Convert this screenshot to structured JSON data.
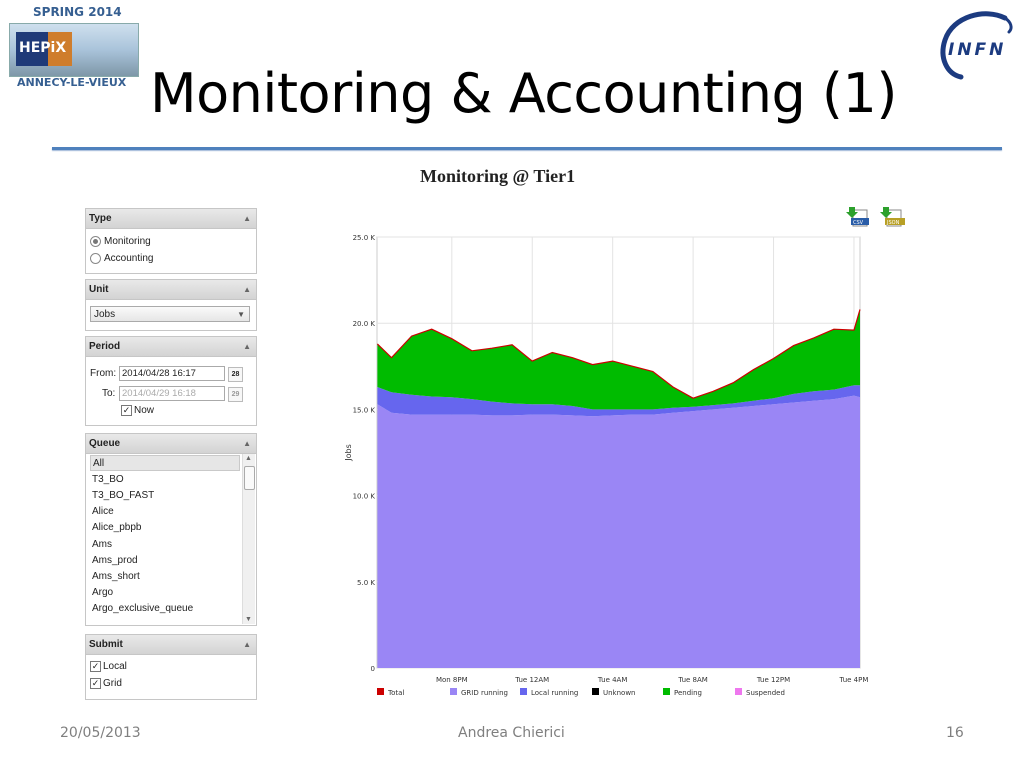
{
  "slide": {
    "title": "Monitoring & Accounting (1)",
    "logo_left_top": "SPRING 2014",
    "logo_left_mid": "HEPiX",
    "logo_left_bottom": "ANNECY-LE-VIEUX",
    "logo_right": "INFN",
    "footer_date": "20/05/2013",
    "footer_author": "Andrea Chierici",
    "footer_page": "16",
    "rule_color": "#4f81bd"
  },
  "page": {
    "heading": "Monitoring @ Tier1",
    "export": {
      "csv_label": "CSV",
      "json_label": "JSON"
    }
  },
  "form": {
    "type": {
      "title": "Type",
      "options": [
        "Monitoring",
        "Accounting"
      ],
      "selected": "Monitoring"
    },
    "unit": {
      "title": "Unit",
      "value": "Jobs"
    },
    "period": {
      "title": "Period",
      "from_label": "From:",
      "from_value": "2014/04/28 16:17",
      "from_day": "28",
      "to_label": "To:",
      "to_value": "2014/04/29 16:18",
      "to_day": "29",
      "now_label": "Now",
      "now_checked": true
    },
    "queue": {
      "title": "Queue",
      "items": [
        "All",
        "T3_BO",
        "T3_BO_FAST",
        "Alice",
        "Alice_pbpb",
        "Ams",
        "Ams_prod",
        "Ams_short",
        "Argo",
        "Argo_exclusive_queue"
      ],
      "selected": "All"
    },
    "submit": {
      "title": "Submit",
      "options": [
        "Local",
        "Grid"
      ],
      "checked": [
        "Local",
        "Grid"
      ]
    }
  },
  "chart_data": {
    "type": "area",
    "title": "",
    "xlabel": "",
    "ylabel": "Jobs",
    "ylim": [
      0,
      25000
    ],
    "y_ticks": [
      "0",
      "5.0 K",
      "10.0 K",
      "15.0 K",
      "20.0 K",
      "25.0 K"
    ],
    "x_ticks": [
      "Mon  8PM",
      "Tue 12AM",
      "Tue  4AM",
      "Tue  8AM",
      "Tue 12PM",
      "Tue  4PM"
    ],
    "x_hours": [
      20,
      24,
      28,
      32,
      36,
      40
    ],
    "x_range_hours": [
      16.28,
      40.3
    ],
    "grid": true,
    "legend_position": "bottom",
    "legend": [
      {
        "name": "Total",
        "color": "#cc0000"
      },
      {
        "name": "GRID running",
        "color": "#9a86f5"
      },
      {
        "name": "Local running",
        "color": "#6666ee"
      },
      {
        "name": "Unknown",
        "color": "#000000"
      },
      {
        "name": "Pending",
        "color": "#00bb00"
      },
      {
        "name": "Suspended",
        "color": "#ee77ee"
      }
    ],
    "x": [
      16.3,
      17,
      18,
      19,
      20,
      21,
      22,
      23,
      24,
      25,
      26,
      27,
      28,
      29,
      30,
      31,
      32,
      33,
      34,
      35,
      36,
      37,
      38,
      39,
      40,
      40.3
    ],
    "series": [
      {
        "name": "GRID running",
        "values": [
          15300,
          14800,
          14700,
          14700,
          14700,
          14700,
          14650,
          14650,
          14700,
          14700,
          14650,
          14600,
          14650,
          14700,
          14700,
          14800,
          14900,
          15000,
          15100,
          15200,
          15300,
          15400,
          15500,
          15600,
          15800,
          15700
        ]
      },
      {
        "name": "Local running",
        "values": [
          1000,
          1200,
          1150,
          1050,
          1000,
          900,
          800,
          700,
          600,
          600,
          550,
          400,
          350,
          300,
          300,
          300,
          250,
          250,
          250,
          300,
          350,
          500,
          550,
          550,
          600,
          700
        ]
      },
      {
        "name": "Unknown",
        "values": [
          0,
          0,
          0,
          0,
          0,
          0,
          0,
          0,
          0,
          0,
          0,
          0,
          0,
          0,
          0,
          0,
          0,
          0,
          0,
          0,
          0,
          0,
          0,
          0,
          0,
          0
        ]
      },
      {
        "name": "Pending",
        "values": [
          2500,
          2000,
          3400,
          3900,
          3400,
          2800,
          3100,
          3400,
          2500,
          3000,
          2800,
          2600,
          2800,
          2500,
          2200,
          1200,
          500,
          800,
          1200,
          1800,
          2300,
          2800,
          3100,
          3500,
          3200,
          4400
        ]
      },
      {
        "name": "Suspended",
        "values": [
          0,
          0,
          0,
          0,
          0,
          0,
          0,
          0,
          0,
          0,
          0,
          0,
          0,
          0,
          0,
          0,
          0,
          0,
          0,
          0,
          0,
          0,
          0,
          0,
          0,
          0
        ]
      },
      {
        "name": "Total",
        "values": [
          18800,
          18000,
          19250,
          19650,
          19100,
          18400,
          18550,
          18750,
          17800,
          18300,
          18000,
          17600,
          17800,
          17500,
          17200,
          16300,
          15650,
          16050,
          16550,
          17300,
          17950,
          18700,
          19150,
          19650,
          19600,
          20800
        ]
      }
    ]
  }
}
